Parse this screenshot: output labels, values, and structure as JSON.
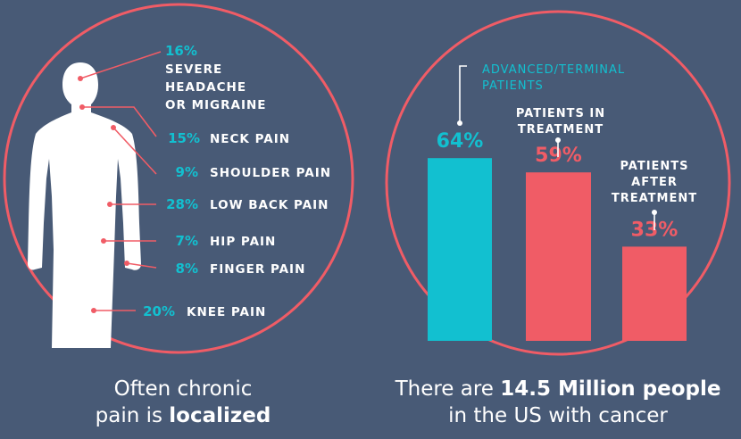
{
  "colors": {
    "background": "#485a76",
    "circle_stroke": "#f05c66",
    "cyan": "#12c0d0",
    "red": "#f05c66",
    "white": "#ffffff"
  },
  "left": {
    "items": [
      {
        "percent": "16%",
        "value": 16,
        "lines": [
          "SEVERE",
          "HEADACHE",
          "OR MIGRAINE"
        ]
      },
      {
        "percent": "15%",
        "value": 15,
        "lines": [
          "NECK PAIN"
        ]
      },
      {
        "percent": "9%",
        "value": 9,
        "lines": [
          "SHOULDER PAIN"
        ]
      },
      {
        "percent": "28%",
        "value": 28,
        "lines": [
          "LOW BACK PAIN"
        ]
      },
      {
        "percent": "7%",
        "value": 7,
        "lines": [
          "HIP PAIN"
        ]
      },
      {
        "percent": "8%",
        "value": 8,
        "lines": [
          "FINGER PAIN"
        ]
      },
      {
        "percent": "20%",
        "value": 20,
        "lines": [
          "KNEE PAIN"
        ]
      }
    ],
    "caption": {
      "line1": "Often chronic",
      "line2_prefix": "pain is ",
      "line2_bold": "localized"
    }
  },
  "chart_data": {
    "type": "bar",
    "categories": [
      "ADVANCED/TERMINAL PATIENTS",
      "PATIENTS IN TREATMENT",
      "PATIENTS AFTER TREATMENT"
    ],
    "category_label_lines": [
      [
        "ADVANCED/TERMINAL",
        "PATIENTS"
      ],
      [
        "PATIENTS IN",
        "TREATMENT"
      ],
      [
        "PATIENTS",
        "AFTER",
        "TREATMENT"
      ]
    ],
    "values": [
      64,
      59,
      33
    ],
    "data_labels": [
      "64%",
      "59%",
      "33%"
    ],
    "bar_colors": [
      "#12c0d0",
      "#f05c66",
      "#f05c66"
    ],
    "ylim": [
      0,
      100
    ],
    "title": "",
    "xlabel": "",
    "ylabel": "",
    "grid": false,
    "legend": "none"
  },
  "right": {
    "caption": {
      "line1_prefix": "There are ",
      "line1_bold": "14.5 Million people",
      "line2": "in the US with cancer"
    }
  }
}
